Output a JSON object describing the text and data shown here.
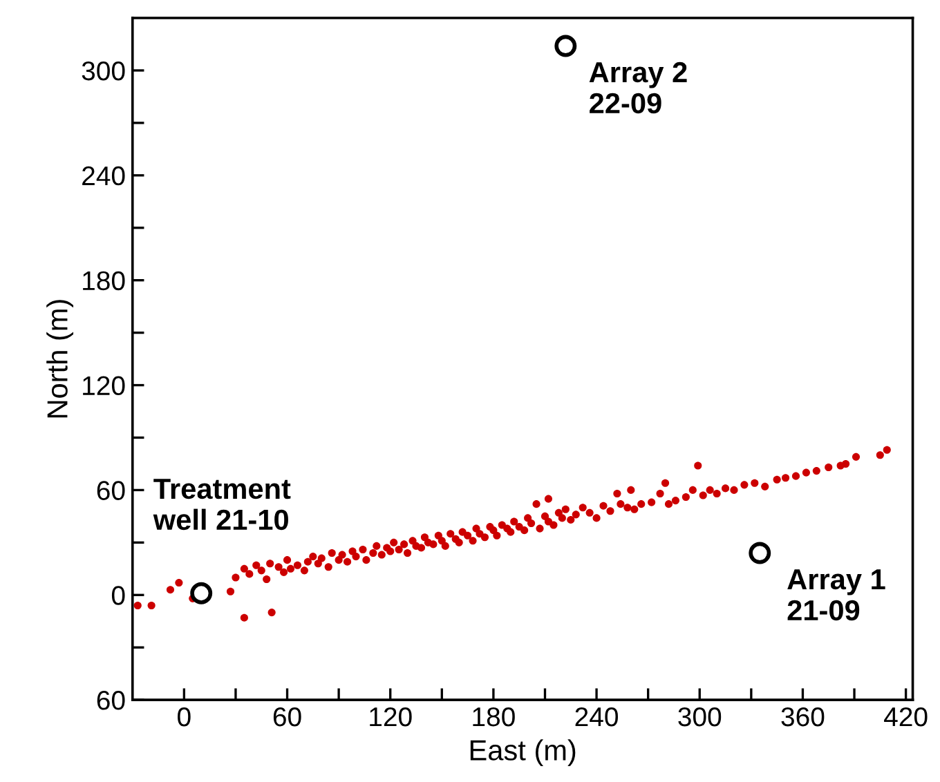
{
  "chart_data": {
    "type": "scatter",
    "xlabel": "East (m)",
    "ylabel": "North (m)",
    "xlim": [
      -30,
      424
    ],
    "ylim": [
      -60,
      330
    ],
    "xticks": [
      0,
      {
        "value": 30,
        "label": null
      },
      60,
      {
        "value": 90,
        "label": null
      },
      120,
      {
        "value": 150,
        "label": null
      },
      180,
      {
        "value": 210,
        "label": null
      },
      240,
      {
        "value": 270,
        "label": null
      },
      300,
      {
        "value": 330,
        "label": null
      },
      360,
      {
        "value": 390,
        "label": null
      },
      420
    ],
    "yticks": [
      {
        "value": -60,
        "label": "60"
      },
      {
        "value": -30,
        "label": null
      },
      0,
      {
        "value": 30,
        "label": null
      },
      60,
      {
        "value": 90,
        "label": null
      },
      120,
      {
        "value": 150,
        "label": null
      },
      180,
      {
        "value": 210,
        "label": null
      },
      240,
      {
        "value": 270,
        "label": null
      },
      300
    ],
    "grid": false,
    "marker": "circle",
    "series": [
      {
        "color": "#cc0000",
        "x": [
          -27,
          -19,
          -3,
          5,
          -8,
          27,
          35,
          51,
          35,
          30,
          38,
          42,
          45,
          48,
          50,
          55,
          58,
          60,
          62,
          66,
          70,
          72,
          75,
          78,
          80,
          84,
          86,
          90,
          92,
          95,
          98,
          100,
          104,
          106,
          110,
          112,
          115,
          118,
          120,
          122,
          125,
          128,
          130,
          133,
          135,
          138,
          140,
          142,
          145,
          148,
          150,
          152,
          155,
          158,
          160,
          162,
          165,
          168,
          170,
          172,
          175,
          178,
          180,
          182,
          185,
          188,
          190,
          192,
          195,
          198,
          200,
          202,
          205,
          207,
          210,
          212,
          215,
          218,
          220,
          222,
          225,
          228,
          232,
          236,
          240,
          244,
          248,
          252,
          254,
          258,
          262,
          266,
          272,
          277,
          282,
          286,
          292,
          299,
          296,
          302,
          306,
          310,
          315,
          320,
          326,
          332,
          338,
          345,
          350,
          356,
          362,
          368,
          375,
          382,
          385,
          391,
          405,
          409,
          260,
          280,
          212
        ],
        "values": [
          -6,
          -6,
          7,
          -2,
          3,
          2,
          -13,
          -10,
          15,
          10,
          12,
          17,
          14,
          9,
          18,
          16,
          13,
          20,
          15,
          17,
          14,
          19,
          22,
          18,
          21,
          16,
          24,
          20,
          23,
          19,
          25,
          22,
          26,
          20,
          24,
          28,
          23,
          27,
          25,
          30,
          26,
          29,
          24,
          31,
          28,
          27,
          33,
          30,
          29,
          34,
          31,
          28,
          35,
          32,
          30,
          36,
          34,
          31,
          38,
          35,
          33,
          39,
          37,
          34,
          40,
          38,
          36,
          42,
          39,
          37,
          44,
          41,
          52,
          38,
          45,
          42,
          40,
          47,
          44,
          49,
          43,
          46,
          50,
          47,
          44,
          51,
          48,
          58,
          52,
          50,
          49,
          52,
          53,
          58,
          52,
          54,
          56,
          74,
          60,
          57,
          60,
          58,
          61,
          60,
          63,
          64,
          62,
          66,
          67,
          68,
          70,
          71,
          73,
          74,
          75,
          79,
          80,
          83,
          60,
          64,
          55
        ]
      },
      {
        "color": "#000000",
        "x": [
          10,
          222,
          335
        ],
        "values": [
          1,
          314,
          24
        ]
      }
    ],
    "annotations": [
      {
        "text": "Treatment\nwell 21-10",
        "x": 10,
        "y": 1
      },
      {
        "text": "Array 2\n22-09",
        "x": 222,
        "y": 314
      },
      {
        "text": "Array 1\n21-09",
        "x": 335,
        "y": 24
      }
    ]
  }
}
